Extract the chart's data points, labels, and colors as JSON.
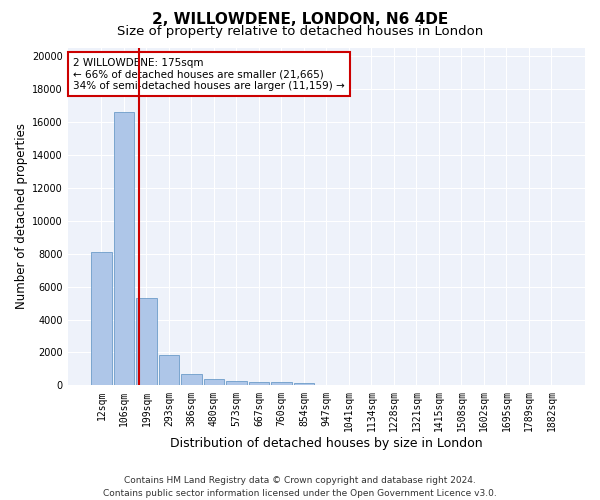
{
  "title": "2, WILLOWDENE, LONDON, N6 4DE",
  "subtitle": "Size of property relative to detached houses in London",
  "xlabel": "Distribution of detached houses by size in London",
  "ylabel": "Number of detached properties",
  "categories": [
    "12sqm",
    "106sqm",
    "199sqm",
    "293sqm",
    "386sqm",
    "480sqm",
    "573sqm",
    "667sqm",
    "760sqm",
    "854sqm",
    "947sqm",
    "1041sqm",
    "1134sqm",
    "1228sqm",
    "1321sqm",
    "1415sqm",
    "1508sqm",
    "1602sqm",
    "1695sqm",
    "1789sqm",
    "1882sqm"
  ],
  "values": [
    8100,
    16600,
    5300,
    1850,
    700,
    380,
    280,
    220,
    180,
    130,
    0,
    0,
    0,
    0,
    0,
    0,
    0,
    0,
    0,
    0,
    0
  ],
  "bar_color": "#aec6e8",
  "bar_edge_color": "#5a8fc2",
  "vline_x": 1.65,
  "vline_color": "#cc0000",
  "annotation_text": "2 WILLOWDENE: 175sqm\n← 66% of detached houses are smaller (21,665)\n34% of semi-detached houses are larger (11,159) →",
  "annotation_box_color": "#ffffff",
  "annotation_box_edge": "#cc0000",
  "background_color": "#eef2fa",
  "grid_color": "#ffffff",
  "ylim": [
    0,
    20500
  ],
  "yticks": [
    0,
    2000,
    4000,
    6000,
    8000,
    10000,
    12000,
    14000,
    16000,
    18000,
    20000
  ],
  "footer_text": "Contains HM Land Registry data © Crown copyright and database right 2024.\nContains public sector information licensed under the Open Government Licence v3.0.",
  "title_fontsize": 11,
  "subtitle_fontsize": 9.5,
  "xlabel_fontsize": 9,
  "ylabel_fontsize": 8.5,
  "tick_fontsize": 7,
  "footer_fontsize": 6.5,
  "annotation_fontsize": 7.5
}
